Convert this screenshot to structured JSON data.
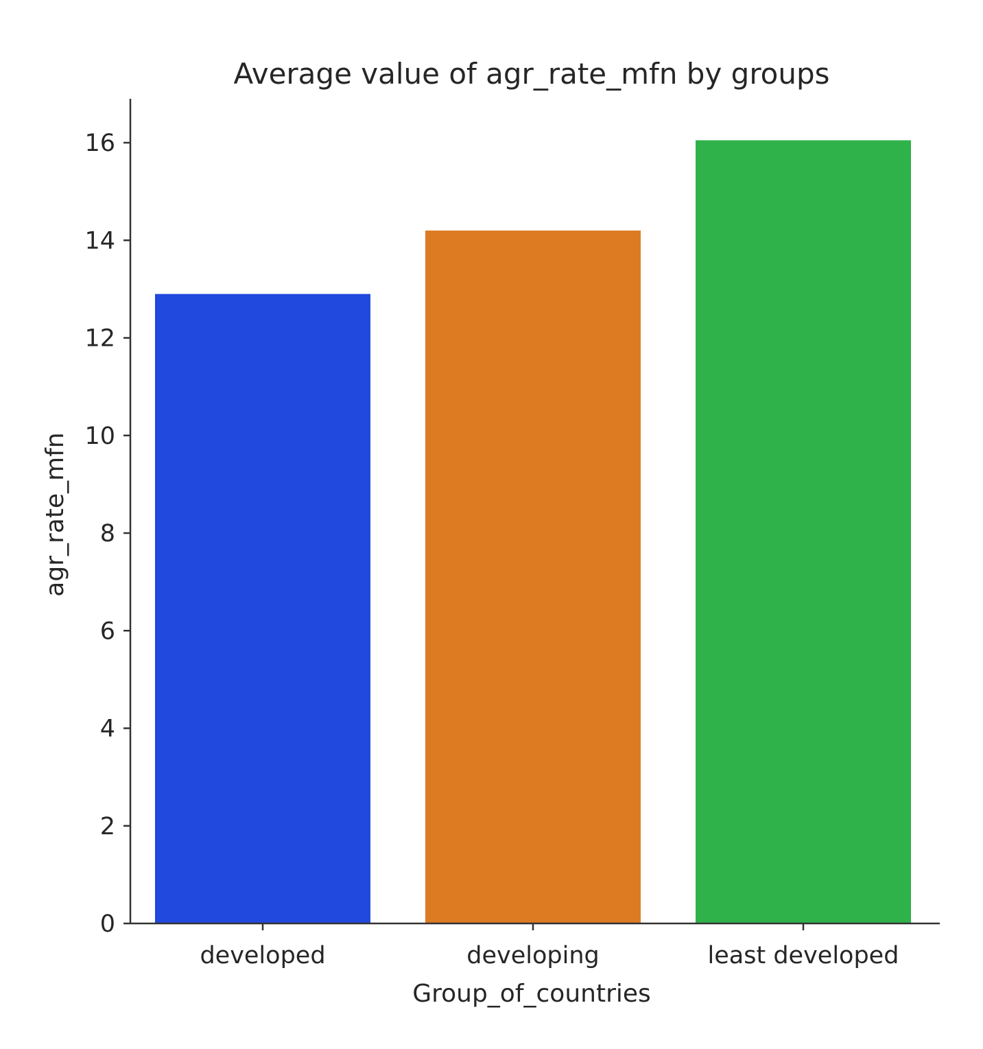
{
  "chart_data": {
    "type": "bar",
    "title": "Average value of agr_rate_mfn by groups",
    "xlabel": "Group_of_countries",
    "ylabel": "agr_rate_mfn",
    "categories": [
      "developed",
      "developing",
      "least developed"
    ],
    "values": [
      12.9,
      14.2,
      16.05
    ],
    "colors": [
      "#2249dd",
      "#dd7b22",
      "#30b24a"
    ],
    "ylim": [
      0,
      16.9
    ],
    "yticks": [
      0,
      2,
      4,
      6,
      8,
      10,
      12,
      14,
      16
    ],
    "grid": false,
    "legend": "none"
  }
}
